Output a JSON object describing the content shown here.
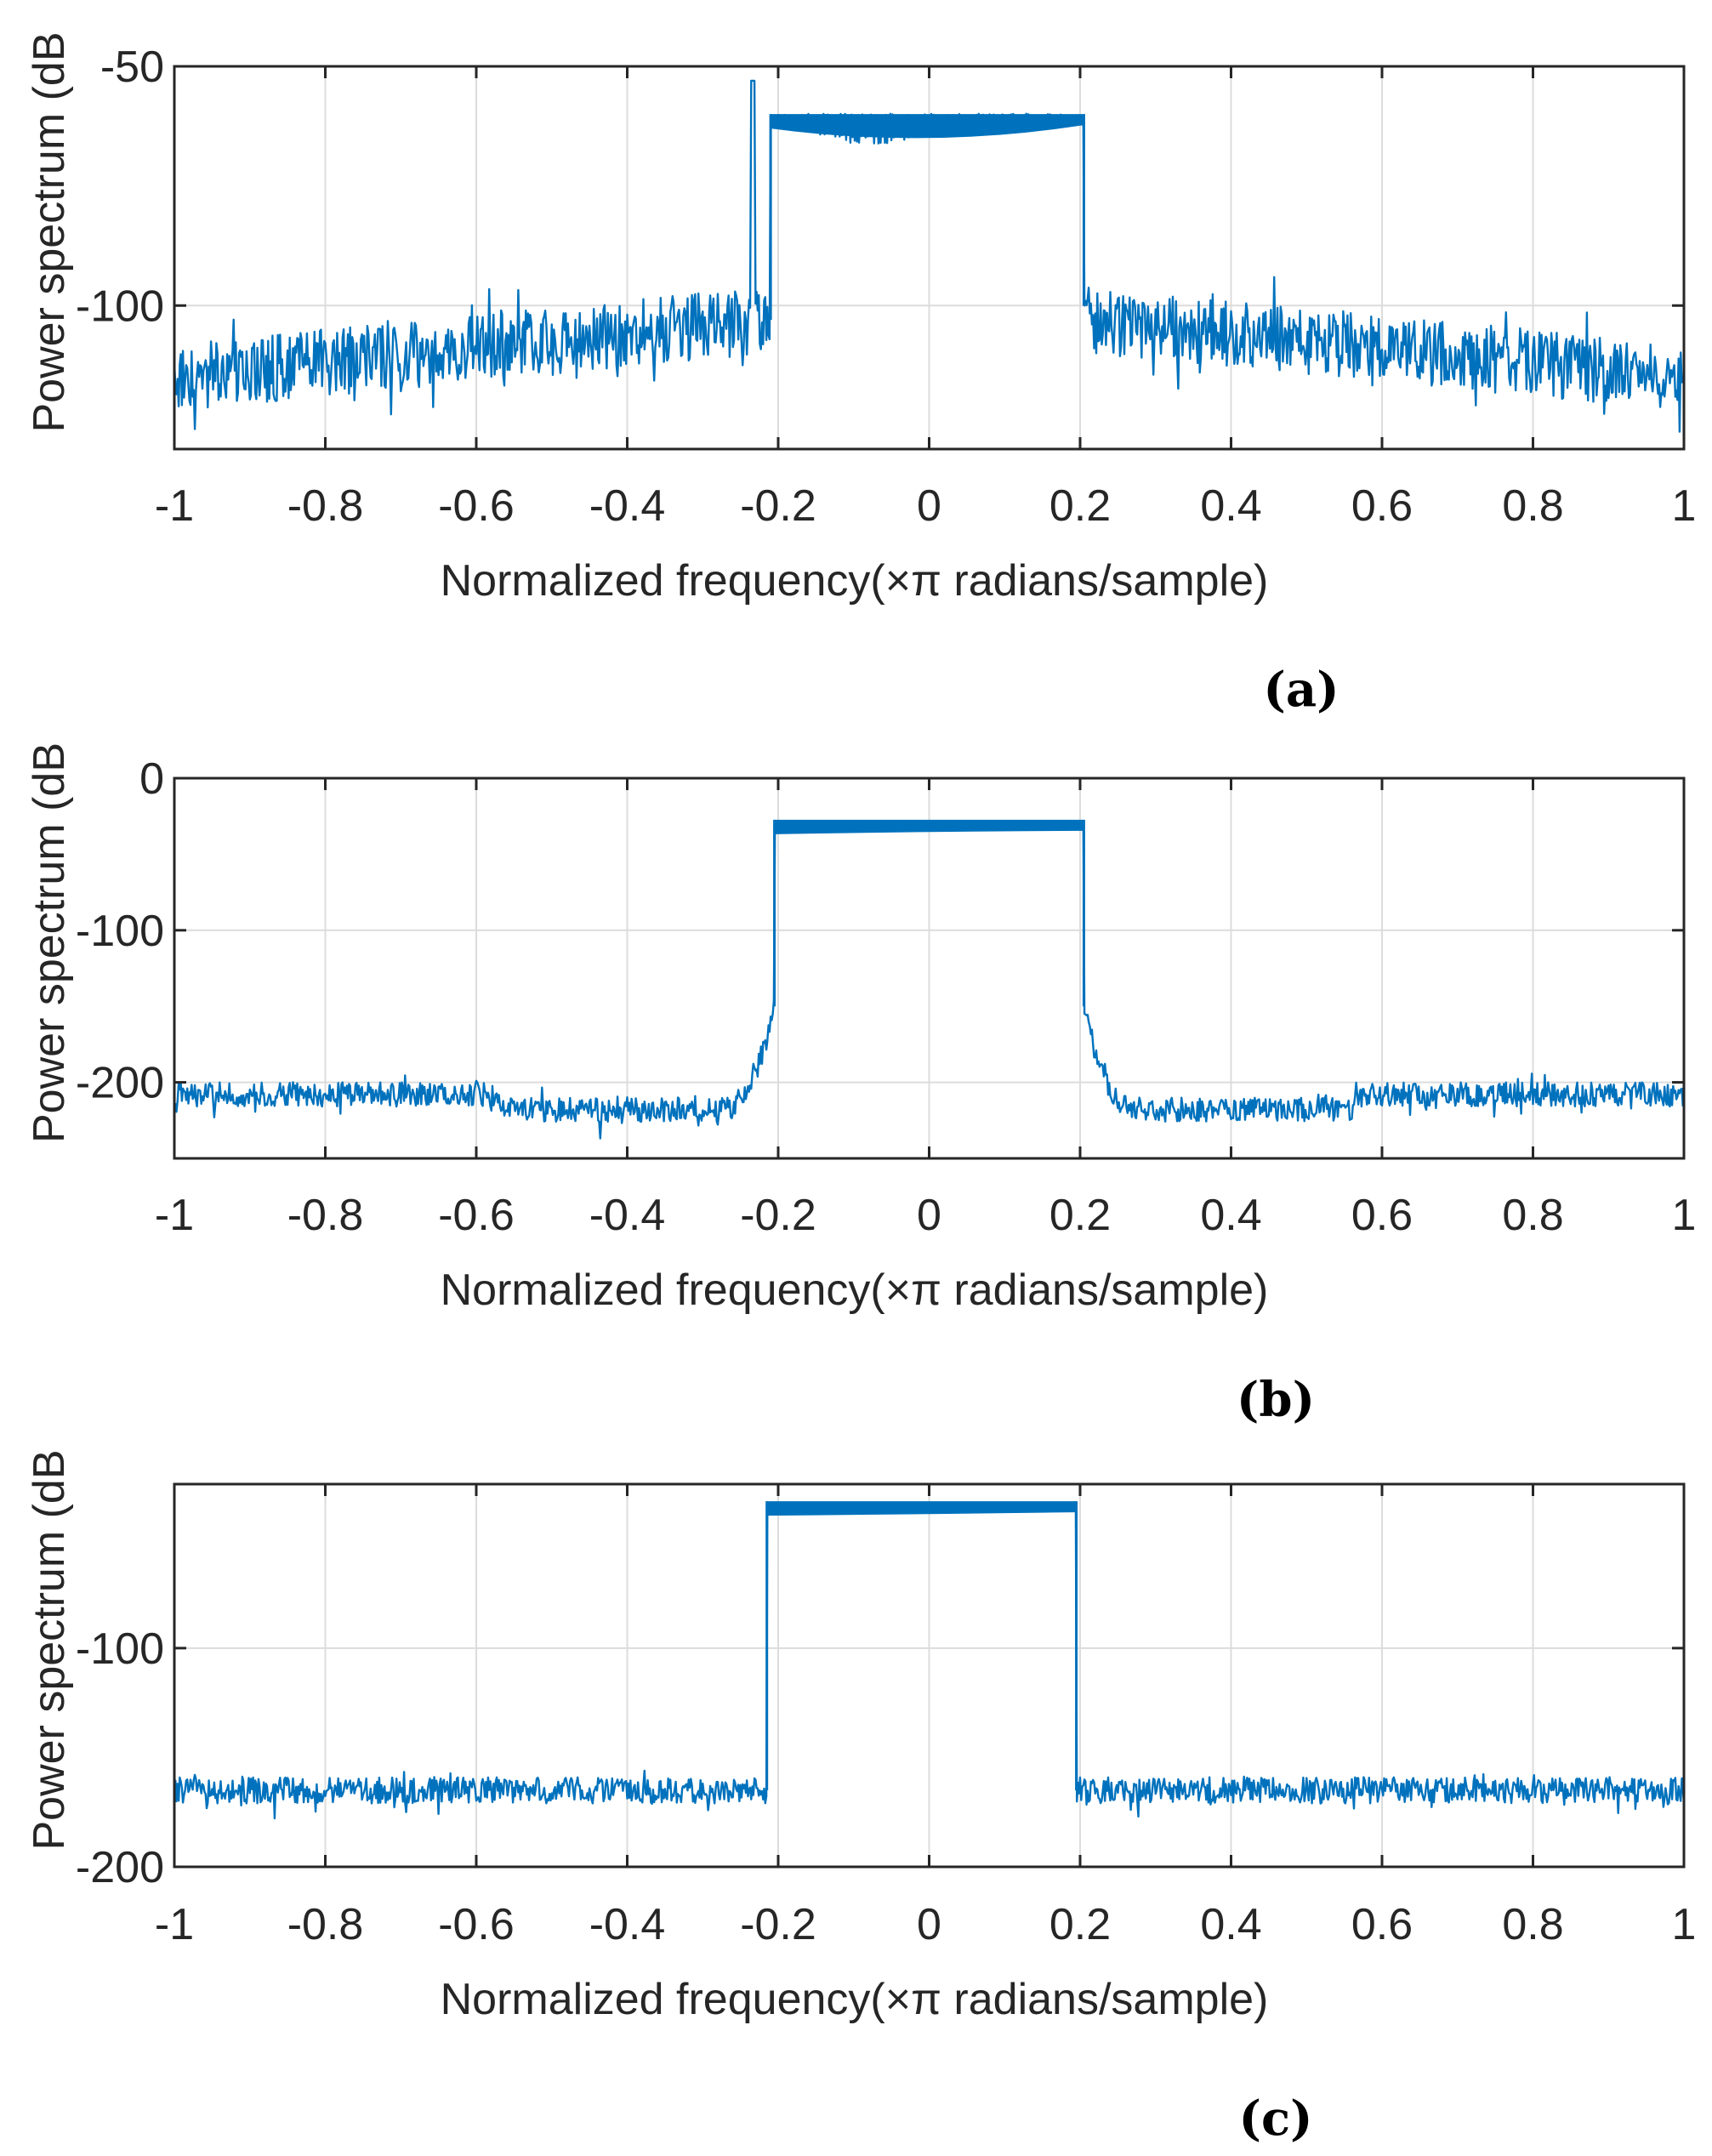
{
  "chart_data": [
    {
      "type": "line",
      "panel_label": "(a)",
      "title": "",
      "xlabel": "Normalized frequency(×π radians/sample)",
      "ylabel": "Power spectrum (dB",
      "xlim": [
        -1,
        1
      ],
      "ylim": [
        -130,
        -50
      ],
      "xticks": [
        -1,
        -0.8,
        -0.6,
        -0.4,
        -0.2,
        0,
        0.2,
        0.4,
        0.6,
        0.8,
        1
      ],
      "xtick_labels": [
        "-1",
        "-0.8",
        "-0.6",
        "-0.4",
        "-0.2",
        "0",
        "0.2",
        "0.4",
        "0.6",
        "0.8",
        "1"
      ],
      "yticks": [
        -50,
        -100
      ],
      "ytick_labels": [
        "-50",
        "-100"
      ],
      "grid": true,
      "series": [
        {
          "name": "Power spectrum",
          "color": "#0072BD",
          "passband": [
            -0.21,
            0.205
          ],
          "passband_top": -60.5,
          "passband_bottom_center": -67,
          "noise_floor_at_edges": -115,
          "noise_floor_near_band": -103,
          "noise_amplitude": 7,
          "spike_x": -0.233,
          "spike_y": -53
        }
      ]
    },
    {
      "type": "line",
      "panel_label": "(b)",
      "title": "",
      "xlabel": "Normalized frequency(×π radians/sample)",
      "ylabel": "Power spectrum (dB",
      "xlim": [
        -1,
        1
      ],
      "ylim": [
        -250,
        0
      ],
      "xticks": [
        -1,
        -0.8,
        -0.6,
        -0.4,
        -0.2,
        0,
        0.2,
        0.4,
        0.6,
        0.8,
        1
      ],
      "xtick_labels": [
        "-1",
        "-0.8",
        "-0.6",
        "-0.4",
        "-0.2",
        "0",
        "0.2",
        "0.4",
        "0.6",
        "0.8",
        "1"
      ],
      "yticks": [
        0,
        -100,
        -200
      ],
      "ytick_labels": [
        "0",
        "-100",
        "-200"
      ],
      "grid": true,
      "series": [
        {
          "name": "Power spectrum",
          "color": "#0072BD",
          "passband": [
            -0.205,
            0.205
          ],
          "passband_top": -29,
          "passband_bottom_center": -34,
          "noise_floor_outer": -208,
          "noise_floor_inner": -218,
          "noise_step_left": -0.57,
          "noise_step_right": 0.56,
          "noise_amplitude": 8
        }
      ]
    },
    {
      "type": "line",
      "panel_label": "(c)",
      "title": "",
      "xlabel": "Normalized frequency(×π radians/sample)",
      "ylabel": "Power spectrum (dB",
      "xlim": [
        -1,
        1
      ],
      "ylim": [
        -200,
        -25
      ],
      "xticks": [
        -1,
        -0.8,
        -0.6,
        -0.4,
        -0.2,
        0,
        0.2,
        0.4,
        0.6,
        0.8,
        1
      ],
      "xtick_labels": [
        "-1",
        "-0.8",
        "-0.6",
        "-0.4",
        "-0.2",
        "0",
        "0.2",
        "0.4",
        "0.6",
        "0.8",
        "1"
      ],
      "yticks": [
        -100,
        -200
      ],
      "ytick_labels": [
        "-100",
        "-200"
      ],
      "grid": true,
      "series": [
        {
          "name": "Power spectrum",
          "color": "#0072BD",
          "passband": [
            -0.215,
            0.195
          ],
          "passband_top": -34,
          "passband_bottom_center": -38,
          "noise_floor": -165,
          "noise_amplitude": 6
        }
      ]
    }
  ]
}
